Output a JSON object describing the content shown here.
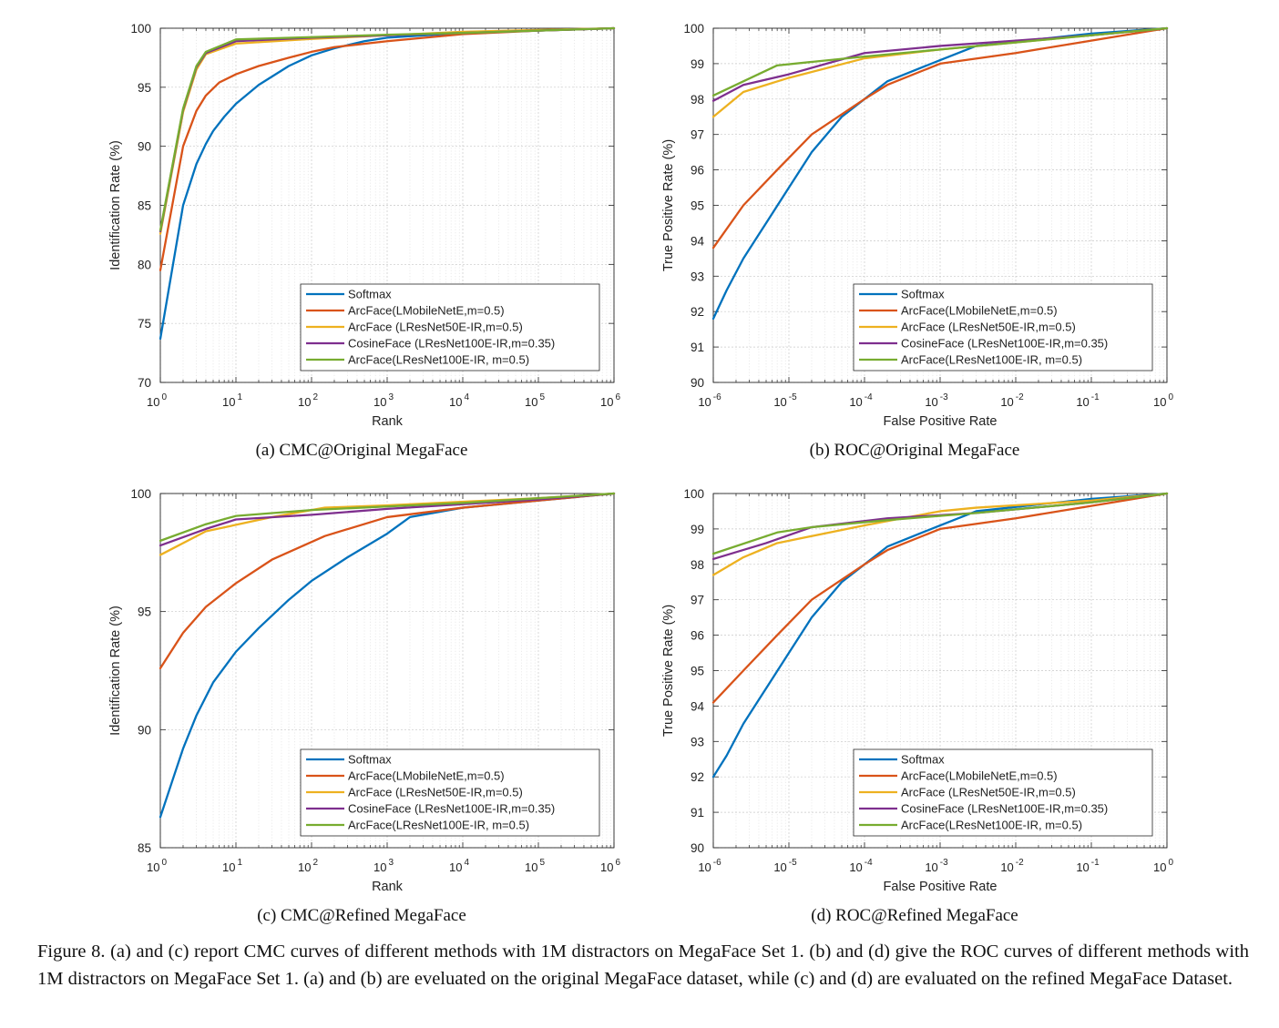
{
  "colors": {
    "Softmax": "#0072BD",
    "ArcFace(LMobileNetE,m=0.5)": "#D95319",
    "ArcFace (LResNet50E-IR,m=0.5)": "#EDB120",
    "CosineFace (LResNet100E-IR,m=0.35)": "#7E2F8E",
    "ArcFace(LResNet100E-IR, m=0.5)": "#77AC30"
  },
  "figure_caption": {
    "label": "Figure 8.",
    "text": "(a) and (c) report CMC curves of different methods with 1M distractors on MegaFace Set 1. (b) and (d) give the ROC curves of different methods with 1M distractors on MegaFace Set 1. (a) and (b) are eveluated on the original MegaFace dataset, while (c) and (d) are evaluated on the refined MegaFace Dataset."
  },
  "chart_data": [
    {
      "id": "a",
      "type": "line",
      "caption": "(a)  CMC@Original MegaFace",
      "xlabel": "Rank",
      "ylabel": "Identification Rate (%)",
      "xscale": "log",
      "xlim": [
        1,
        1000000
      ],
      "ylim": [
        70,
        100
      ],
      "xticks": [
        1,
        10,
        100,
        1000,
        10000,
        100000,
        1000000
      ],
      "xtick_labels": [
        [
          "10",
          "0"
        ],
        [
          "10",
          "1"
        ],
        [
          "10",
          "2"
        ],
        [
          "10",
          "3"
        ],
        [
          "10",
          "4"
        ],
        [
          "10",
          "5"
        ],
        [
          "10",
          "6"
        ]
      ],
      "yticks": [
        70,
        75,
        80,
        85,
        90,
        95,
        100
      ],
      "ytick_labels": [
        "70",
        "75",
        "80",
        "85",
        "90",
        "95",
        "100"
      ],
      "grid": true,
      "legend_position": "bottom-right",
      "series": [
        {
          "name": "Softmax",
          "x": [
            1,
            2,
            3,
            4,
            5,
            7,
            10,
            20,
            50,
            100,
            200,
            500,
            1000,
            10000,
            100000,
            1000000
          ],
          "y": [
            73.7,
            85.0,
            88.5,
            90.2,
            91.3,
            92.5,
            93.6,
            95.2,
            96.8,
            97.7,
            98.3,
            98.9,
            99.2,
            99.6,
            99.8,
            100
          ]
        },
        {
          "name": "ArcFace(LMobileNetE,m=0.5)",
          "x": [
            1,
            2,
            3,
            4,
            6,
            10,
            20,
            50,
            100,
            200,
            1000,
            10000,
            100000,
            1000000
          ],
          "y": [
            79.5,
            90.0,
            93.0,
            94.3,
            95.4,
            96.1,
            96.8,
            97.5,
            98.0,
            98.4,
            98.9,
            99.5,
            99.8,
            100
          ]
        },
        {
          "name": "ArcFace (LResNet50E-IR,m=0.5)",
          "x": [
            1,
            2,
            3,
            4,
            10,
            100,
            1000,
            10000,
            100000,
            1000000
          ],
          "y": [
            82.6,
            92.9,
            96.5,
            97.8,
            98.7,
            99.1,
            99.4,
            99.7,
            99.85,
            100
          ]
        },
        {
          "name": "CosineFace (LResNet100E-IR,m=0.35)",
          "x": [
            1,
            2,
            3,
            4,
            10,
            100,
            1000,
            10000,
            100000,
            1000000
          ],
          "y": [
            82.8,
            93.1,
            96.7,
            97.9,
            98.9,
            99.2,
            99.4,
            99.6,
            99.8,
            100
          ]
        },
        {
          "name": "ArcFace(LResNet100E-IR, m=0.5)",
          "x": [
            1,
            2,
            3,
            4,
            10,
            100,
            1000,
            10000,
            100000,
            1000000
          ],
          "y": [
            82.9,
            93.2,
            96.8,
            98.0,
            99.05,
            99.25,
            99.45,
            99.6,
            99.8,
            100
          ]
        }
      ]
    },
    {
      "id": "b",
      "type": "line",
      "caption": "(b)  ROC@Original MegaFace",
      "xlabel": "False Positive Rate",
      "ylabel": "True Positive Rate (%)",
      "xscale": "log",
      "xlim": [
        1e-06,
        1
      ],
      "ylim": [
        90,
        100
      ],
      "xticks": [
        1e-06,
        1e-05,
        0.0001,
        0.001,
        0.01,
        0.1,
        1
      ],
      "xtick_labels": [
        [
          "10",
          "-6"
        ],
        [
          "10",
          "-5"
        ],
        [
          "10",
          "-4"
        ],
        [
          "10",
          "-3"
        ],
        [
          "10",
          "-2"
        ],
        [
          "10",
          "-1"
        ],
        [
          "10",
          "0"
        ]
      ],
      "yticks": [
        90,
        91,
        92,
        93,
        94,
        95,
        96,
        97,
        98,
        99,
        100
      ],
      "ytick_labels": [
        "90",
        "91",
        "92",
        "93",
        "94",
        "95",
        "96",
        "97",
        "98",
        "99",
        "100"
      ],
      "grid": true,
      "legend_position": "bottom-right",
      "series": [
        {
          "name": "Softmax",
          "x": [
            1e-06,
            1.5e-06,
            2.5e-06,
            5e-06,
            1e-05,
            2e-05,
            5e-05,
            0.0001,
            0.0002,
            0.001,
            0.003,
            0.1,
            1
          ],
          "y": [
            91.8,
            92.6,
            93.5,
            94.5,
            95.5,
            96.5,
            97.5,
            98.0,
            98.5,
            99.1,
            99.5,
            99.85,
            100
          ]
        },
        {
          "name": "ArcFace(LMobileNetE,m=0.5)",
          "x": [
            1e-06,
            2.5e-06,
            7e-06,
            2e-05,
            0.0001,
            0.0002,
            0.001,
            0.01,
            0.1,
            1
          ],
          "y": [
            93.8,
            95.0,
            96.0,
            97.0,
            98.0,
            98.4,
            99.0,
            99.3,
            99.65,
            100
          ]
        },
        {
          "name": "ArcFace (LResNet50E-IR,m=0.5)",
          "x": [
            1e-06,
            2.5e-06,
            1e-05,
            0.0001,
            0.001,
            0.01,
            0.1,
            1
          ],
          "y": [
            97.5,
            98.2,
            98.6,
            99.15,
            99.4,
            99.6,
            99.8,
            100
          ]
        },
        {
          "name": "CosineFace (LResNet100E-IR,m=0.35)",
          "x": [
            1e-06,
            2.5e-06,
            1e-05,
            0.0001,
            0.001,
            0.01,
            0.1,
            1
          ],
          "y": [
            97.95,
            98.4,
            98.7,
            99.3,
            99.5,
            99.65,
            99.8,
            100
          ]
        },
        {
          "name": "ArcFace(LResNet100E-IR, m=0.5)",
          "x": [
            1e-06,
            2.5e-06,
            7e-06,
            2e-05,
            0.0001,
            0.001,
            0.01,
            0.1,
            1
          ],
          "y": [
            98.1,
            98.5,
            98.95,
            99.05,
            99.2,
            99.4,
            99.6,
            99.8,
            100
          ]
        }
      ]
    },
    {
      "id": "c",
      "type": "line",
      "caption": "(c)  CMC@Refined MegaFace",
      "xlabel": "Rank",
      "ylabel": "Identification Rate (%)",
      "xscale": "log",
      "xlim": [
        1,
        1000000
      ],
      "ylim": [
        85,
        100
      ],
      "xticks": [
        1,
        10,
        100,
        1000,
        10000,
        100000,
        1000000
      ],
      "xtick_labels": [
        [
          "10",
          "0"
        ],
        [
          "10",
          "1"
        ],
        [
          "10",
          "2"
        ],
        [
          "10",
          "3"
        ],
        [
          "10",
          "4"
        ],
        [
          "10",
          "5"
        ],
        [
          "10",
          "6"
        ]
      ],
      "yticks": [
        85,
        90,
        95,
        100
      ],
      "ytick_labels": [
        "85",
        "90",
        "95",
        "100"
      ],
      "grid": true,
      "legend_position": "bottom-right",
      "series": [
        {
          "name": "Softmax",
          "x": [
            1,
            1.5,
            2,
            3,
            5,
            10,
            20,
            50,
            100,
            300,
            1000,
            2000,
            10000,
            100000,
            1000000
          ],
          "y": [
            86.3,
            88.0,
            89.2,
            90.6,
            92.0,
            93.3,
            94.3,
            95.5,
            96.3,
            97.3,
            98.3,
            99.0,
            99.4,
            99.7,
            100
          ]
        },
        {
          "name": "ArcFace(LMobileNetE,m=0.5)",
          "x": [
            1,
            2,
            4,
            10,
            30,
            150,
            1000,
            10000,
            100000,
            1000000
          ],
          "y": [
            92.6,
            94.1,
            95.2,
            96.2,
            97.2,
            98.2,
            99.0,
            99.4,
            99.7,
            100
          ]
        },
        {
          "name": "ArcFace (LResNet50E-IR,m=0.5)",
          "x": [
            1,
            4,
            30,
            150,
            1000,
            10000,
            100000,
            1000000
          ],
          "y": [
            97.4,
            98.4,
            99.0,
            99.4,
            99.5,
            99.65,
            99.8,
            100
          ]
        },
        {
          "name": "CosineFace (LResNet100E-IR,m=0.35)",
          "x": [
            1,
            4,
            10,
            100,
            1000,
            10000,
            100000,
            1000000
          ],
          "y": [
            97.8,
            98.5,
            98.9,
            99.1,
            99.35,
            99.55,
            99.75,
            100
          ]
        },
        {
          "name": "ArcFace(LResNet100E-IR, m=0.5)",
          "x": [
            1,
            4,
            10,
            100,
            1000,
            10000,
            100000,
            1000000
          ],
          "y": [
            98.0,
            98.7,
            99.05,
            99.3,
            99.45,
            99.6,
            99.8,
            100
          ]
        }
      ]
    },
    {
      "id": "d",
      "type": "line",
      "caption": "(d)  ROC@Refined MegaFace",
      "xlabel": "False Positive Rate",
      "ylabel": "True Positive Rate (%)",
      "xscale": "log",
      "xlim": [
        1e-06,
        1
      ],
      "ylim": [
        90,
        100
      ],
      "xticks": [
        1e-06,
        1e-05,
        0.0001,
        0.001,
        0.01,
        0.1,
        1
      ],
      "xtick_labels": [
        [
          "10",
          "-6"
        ],
        [
          "10",
          "-5"
        ],
        [
          "10",
          "-4"
        ],
        [
          "10",
          "-3"
        ],
        [
          "10",
          "-2"
        ],
        [
          "10",
          "-1"
        ],
        [
          "10",
          "0"
        ]
      ],
      "yticks": [
        90,
        91,
        92,
        93,
        94,
        95,
        96,
        97,
        98,
        99,
        100
      ],
      "ytick_labels": [
        "90",
        "91",
        "92",
        "93",
        "94",
        "95",
        "96",
        "97",
        "98",
        "99",
        "100"
      ],
      "grid": true,
      "legend_position": "bottom-right",
      "series": [
        {
          "name": "Softmax",
          "x": [
            1e-06,
            1.5e-06,
            2.5e-06,
            5e-06,
            1e-05,
            2e-05,
            5e-05,
            0.0001,
            0.0002,
            0.001,
            0.003,
            0.1,
            1
          ],
          "y": [
            92.0,
            92.6,
            93.5,
            94.5,
            95.5,
            96.5,
            97.5,
            98.0,
            98.5,
            99.1,
            99.5,
            99.85,
            100
          ]
        },
        {
          "name": "ArcFace(LMobileNetE,m=0.5)",
          "x": [
            1e-06,
            2.5e-06,
            7e-06,
            2e-05,
            0.0001,
            0.0002,
            0.001,
            0.01,
            0.1,
            1
          ],
          "y": [
            94.1,
            95.0,
            96.0,
            97.0,
            98.0,
            98.4,
            99.0,
            99.3,
            99.65,
            100
          ]
        },
        {
          "name": "ArcFace (LResNet50E-IR,m=0.5)",
          "x": [
            1e-06,
            2.5e-06,
            7e-06,
            0.0001,
            0.001,
            0.003,
            0.1,
            1
          ],
          "y": [
            97.7,
            98.2,
            98.6,
            99.1,
            99.5,
            99.6,
            99.8,
            100
          ]
        },
        {
          "name": "CosineFace (LResNet100E-IR,m=0.35)",
          "x": [
            1e-06,
            5e-06,
            2e-05,
            0.0002,
            0.003,
            0.1,
            1
          ],
          "y": [
            98.15,
            98.6,
            99.05,
            99.3,
            99.45,
            99.75,
            100
          ]
        },
        {
          "name": "ArcFace(LResNet100E-IR, m=0.5)",
          "x": [
            1e-06,
            7e-06,
            2e-05,
            0.0002,
            0.003,
            0.1,
            1
          ],
          "y": [
            98.3,
            98.9,
            99.05,
            99.25,
            99.45,
            99.75,
            100
          ]
        }
      ]
    }
  ]
}
